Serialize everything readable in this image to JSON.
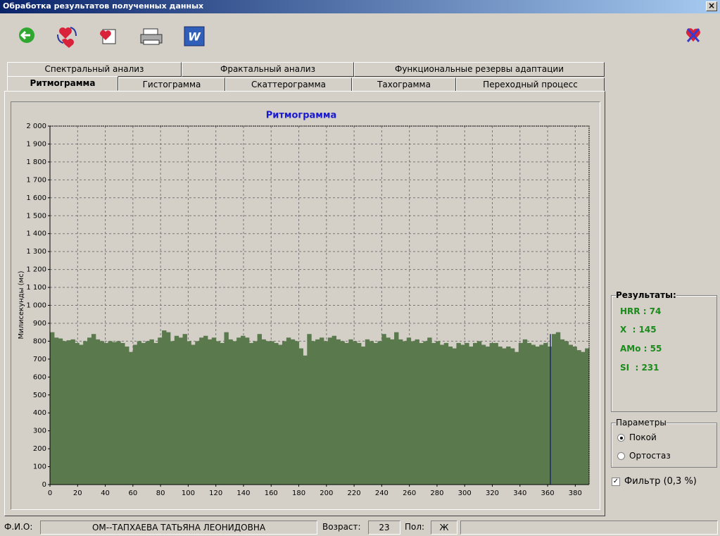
{
  "window": {
    "title": "Обработка результатов полученных данных"
  },
  "tabs": {
    "row1": [
      "Спектральный анализ",
      "Фрактальный анализ",
      "Функциональные резервы адаптации"
    ],
    "row2": [
      "Ритмограмма",
      "Гистограмма",
      "Скаттерограмма",
      "Тахограмма",
      "Переходный процесс"
    ]
  },
  "chart_data": {
    "type": "bar",
    "title": "Ритмограмма",
    "y_label": "Милисекунды (мс)",
    "color": "#5a7a4e",
    "grid": true,
    "cursor_x": 362,
    "cursor_color": "#1a2a6a",
    "xlim": [
      0,
      390
    ],
    "ylim": [
      0,
      2000
    ],
    "xticks": [
      0,
      20,
      40,
      60,
      80,
      100,
      120,
      140,
      160,
      180,
      200,
      220,
      240,
      260,
      280,
      300,
      320,
      340,
      360,
      380
    ],
    "yticks": [
      0,
      100,
      200,
      300,
      400,
      500,
      600,
      700,
      800,
      900,
      {
        "value": 1000,
        "label": "1 000"
      },
      {
        "value": 1100,
        "label": "1 100"
      },
      {
        "value": 1200,
        "label": "1 200"
      },
      {
        "value": 1300,
        "label": "1 300"
      },
      {
        "value": 1400,
        "label": "1 400"
      },
      {
        "value": 1500,
        "label": "1 500"
      },
      {
        "value": 1600,
        "label": "1 600"
      },
      {
        "value": 1700,
        "label": "1 700"
      },
      {
        "value": 1800,
        "label": "1 800"
      },
      {
        "value": 1900,
        "label": "1 900"
      },
      {
        "value": 2000,
        "label": "2 000"
      }
    ],
    "x": [
      0,
      3,
      6,
      9,
      12,
      15,
      18,
      21,
      24,
      27,
      30,
      33,
      36,
      39,
      42,
      45,
      48,
      51,
      54,
      57,
      60,
      63,
      66,
      69,
      72,
      75,
      78,
      81,
      84,
      87,
      90,
      93,
      96,
      99,
      102,
      105,
      108,
      111,
      114,
      117,
      120,
      123,
      126,
      129,
      132,
      135,
      138,
      141,
      144,
      147,
      150,
      153,
      156,
      159,
      162,
      165,
      168,
      171,
      174,
      177,
      180,
      183,
      186,
      189,
      192,
      195,
      198,
      201,
      204,
      207,
      210,
      213,
      216,
      219,
      222,
      225,
      228,
      231,
      234,
      237,
      240,
      243,
      246,
      249,
      252,
      255,
      258,
      261,
      264,
      267,
      270,
      273,
      276,
      279,
      282,
      285,
      288,
      291,
      294,
      297,
      300,
      303,
      306,
      309,
      312,
      315,
      318,
      321,
      324,
      327,
      330,
      333,
      336,
      339,
      342,
      345,
      348,
      351,
      354,
      357,
      360,
      363,
      366,
      369,
      372,
      375,
      378,
      381,
      384,
      387
    ],
    "values": [
      850,
      820,
      815,
      800,
      805,
      810,
      790,
      780,
      800,
      820,
      840,
      810,
      800,
      790,
      800,
      795,
      800,
      790,
      770,
      740,
      780,
      800,
      790,
      800,
      810,
      790,
      820,
      860,
      850,
      800,
      830,
      820,
      840,
      800,
      780,
      800,
      820,
      830,
      810,
      820,
      800,
      790,
      850,
      810,
      800,
      820,
      830,
      820,
      790,
      800,
      840,
      810,
      800,
      800,
      790,
      780,
      800,
      820,
      810,
      800,
      760,
      720,
      840,
      800,
      810,
      820,
      800,
      820,
      830,
      810,
      800,
      790,
      810,
      800,
      790,
      770,
      810,
      800,
      790,
      800,
      840,
      820,
      810,
      850,
      810,
      800,
      820,
      800,
      810,
      790,
      800,
      820,
      790,
      800,
      780,
      790,
      770,
      760,
      790,
      780,
      790,
      770,
      790,
      800,
      780,
      770,
      790,
      790,
      770,
      760,
      770,
      760,
      740,
      790,
      810,
      790,
      780,
      770,
      780,
      790,
      770,
      840,
      850,
      810,
      800,
      780,
      770,
      750,
      740,
      760
    ]
  },
  "results": {
    "title": "Результаты:",
    "items": [
      "HRR : 74",
      "X  : 145",
      "AMo : 55",
      "SI  : 231"
    ]
  },
  "params": {
    "title": "Параметры",
    "options": [
      "Покой",
      "Ортостаз"
    ]
  },
  "filter": "Фильтр (0,3 %)",
  "status": {
    "name_label": "Ф.И.О:",
    "name": "ОМ--ТАПХАЕВА  ТАТЬЯНА  ЛЕОНИДОВНА",
    "age_label": "Возраст:",
    "age": "23",
    "sex_label": "Пол:",
    "sex": "Ж"
  }
}
